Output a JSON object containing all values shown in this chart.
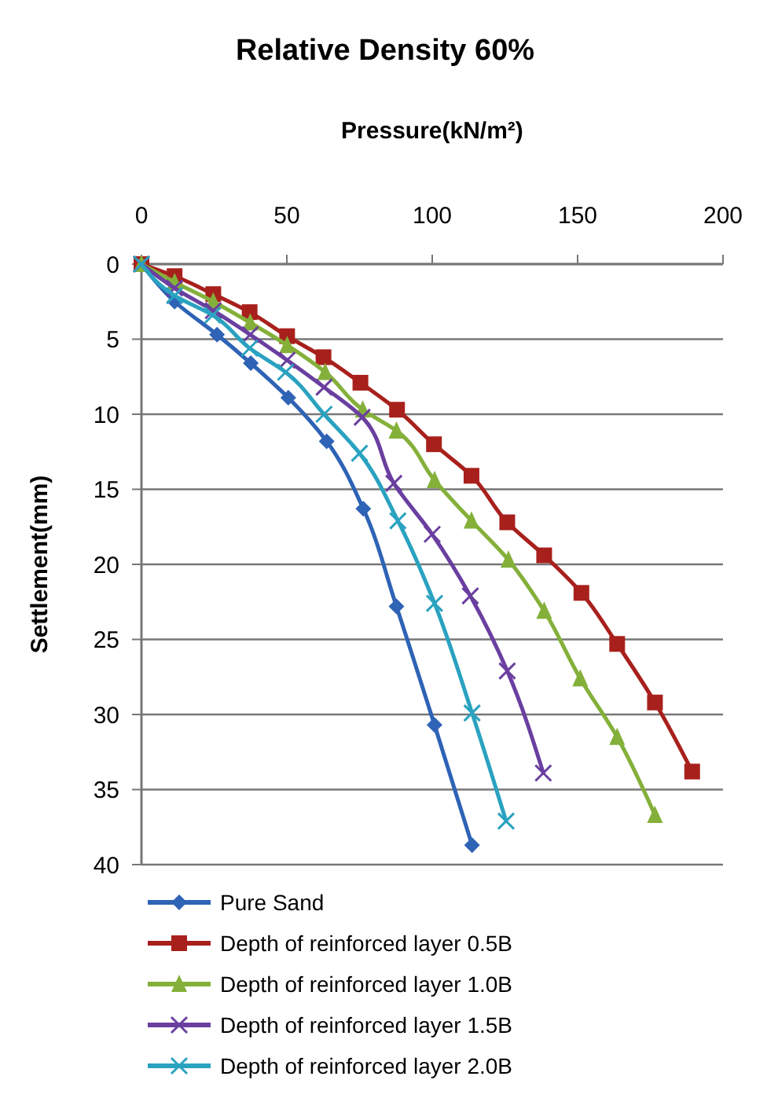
{
  "chart_data": {
    "type": "line",
    "title": "Relative Density 60%",
    "xlabel": "Pressure(kN/m²)",
    "ylabel": "Settlement(mm)",
    "xlim": [
      0,
      200
    ],
    "xticks": [
      0,
      50,
      100,
      150,
      200
    ],
    "ylim": [
      40,
      0
    ],
    "yticks": [
      0,
      5,
      10,
      15,
      20,
      25,
      30,
      35,
      40
    ],
    "grid": "y",
    "legend": "bottom",
    "line_style": "solid",
    "series": [
      {
        "name": "Pure Sand",
        "color": "#2e63b5",
        "marker": "diamond",
        "x": [
          0,
          11.4,
          26,
          37.6,
          50.5,
          63.7,
          76.3,
          87.7,
          100.8,
          113.7
        ],
        "values": [
          0,
          2.5,
          4.7,
          6.6,
          8.9,
          11.8,
          16.3,
          22.8,
          30.7,
          38.7
        ]
      },
      {
        "name": "Depth of reinforced layer 0.5B",
        "color": "#a8201c",
        "marker": "square",
        "x": [
          0,
          11.4,
          24.7,
          37.2,
          50.1,
          62.6,
          75.3,
          87.9,
          100.6,
          113.5,
          125.8,
          138.5,
          151.3,
          163.6,
          176.6,
          189.4
        ],
        "values": [
          0,
          0.8,
          2,
          3.2,
          4.8,
          6.2,
          7.9,
          9.7,
          12,
          14.1,
          17.2,
          19.4,
          21.9,
          25.3,
          29.2,
          33.8
        ]
      },
      {
        "name": "Depth of reinforced layer 1.0B",
        "color": "#84b03a",
        "marker": "triangle",
        "x": [
          0,
          11.4,
          24.7,
          37.4,
          50.1,
          63.2,
          76.1,
          87.7,
          100.8,
          113.5,
          126.2,
          138.5,
          150.9,
          163.6,
          176.6
        ],
        "values": [
          0,
          1.2,
          2.5,
          3.9,
          5.4,
          7.2,
          9.7,
          11.1,
          14.4,
          17.1,
          19.7,
          23.1,
          27.6,
          31.5,
          36.7
        ]
      },
      {
        "name": "Depth of reinforced layer 1.5B",
        "color": "#6a3fa0",
        "marker": "cross",
        "x": [
          0,
          11.4,
          24.7,
          37.4,
          50.1,
          62.8,
          75.9,
          86.8,
          100,
          113.1,
          125.8,
          138.2
        ],
        "values": [
          0,
          1.6,
          3.1,
          4.7,
          6.4,
          8.2,
          10.2,
          14.6,
          18,
          22.1,
          27.1,
          33.9
        ]
      },
      {
        "name": "Depth of reinforced layer 2.0B",
        "color": "#2aa2c0",
        "marker": "cross",
        "x": [
          0,
          11.4,
          24.5,
          37.2,
          49.6,
          62.8,
          75,
          88.2,
          100.8,
          113.7,
          125.4
        ],
        "values": [
          0,
          2.1,
          3.4,
          5.6,
          7.2,
          10,
          12.6,
          17.1,
          22.6,
          29.9,
          37.1
        ]
      }
    ]
  }
}
